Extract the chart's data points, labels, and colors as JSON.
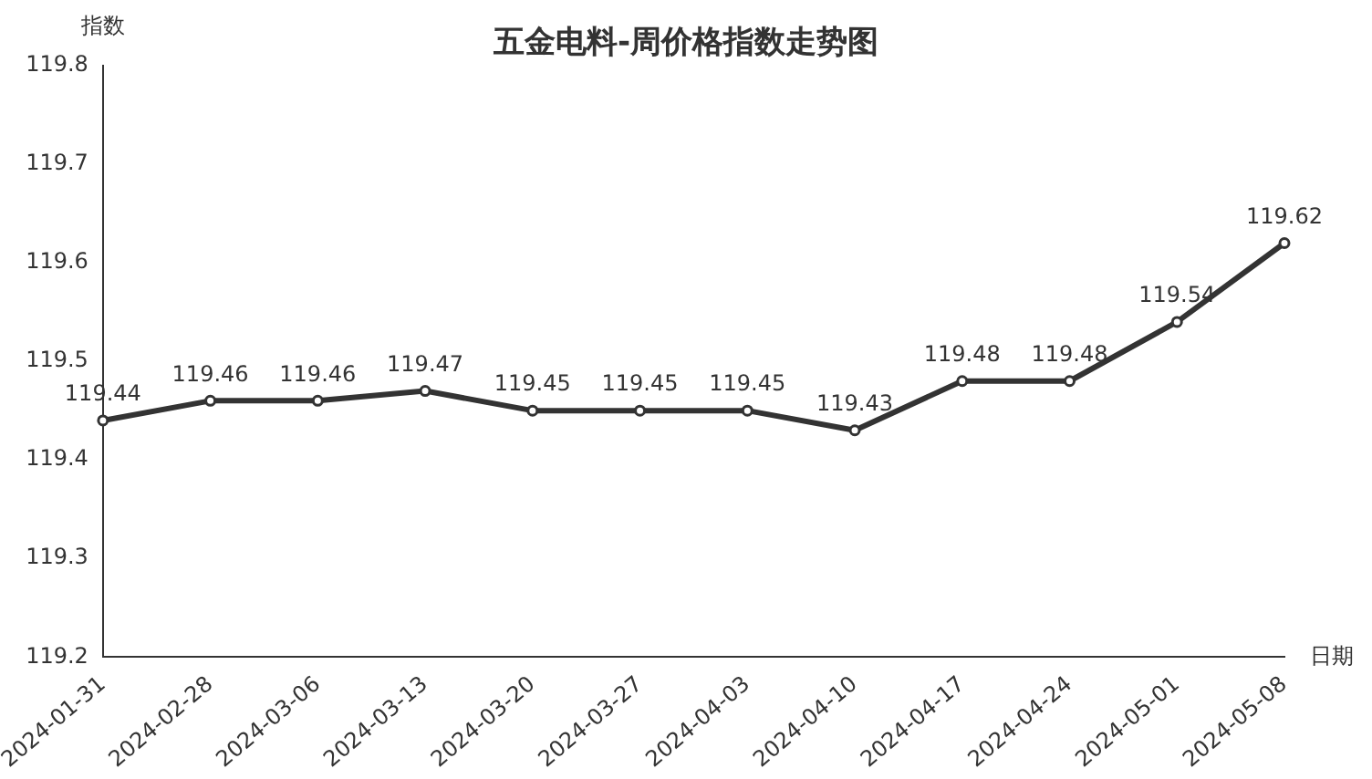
{
  "chart_data": {
    "type": "line",
    "title": "五金电料-周价格指数走势图",
    "xlabel": "日期",
    "ylabel": "指数",
    "categories": [
      "2024-01-31",
      "2024-02-28",
      "2024-03-06",
      "2024-03-13",
      "2024-03-20",
      "2024-03-27",
      "2024-04-03",
      "2024-04-10",
      "2024-04-17",
      "2024-04-24",
      "2024-05-01",
      "2024-05-08"
    ],
    "series": [
      {
        "color": "#333333",
        "values": [
          119.44,
          119.46,
          119.46,
          119.47,
          119.45,
          119.45,
          119.45,
          119.43,
          119.48,
          119.48,
          119.54,
          119.62
        ]
      }
    ],
    "ylim": [
      119.2,
      119.8
    ],
    "yticks": [
      119.2,
      119.3,
      119.4,
      119.5,
      119.6,
      119.7,
      119.8
    ],
    "grid": false,
    "legend": false,
    "marker": "circle",
    "line_style": "solid",
    "data_labels": true
  }
}
